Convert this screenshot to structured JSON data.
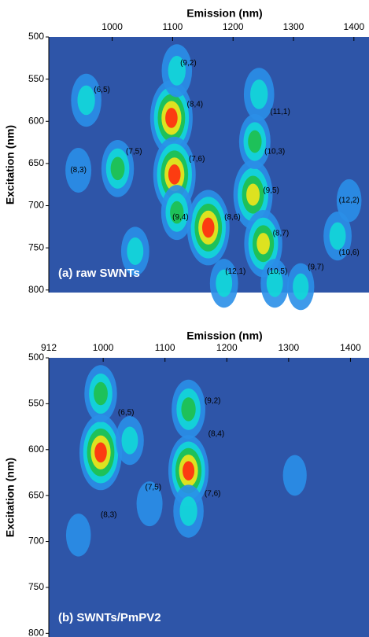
{
  "chart_data": [
    {
      "type": "heatmap",
      "xlabel": "Emission (nm)",
      "ylabel": "Excitation (nm)",
      "panel_label": "(a) raw SWNTs",
      "xlim": [
        895,
        1425
      ],
      "ylim": [
        500,
        803
      ],
      "xticks": [
        1000,
        1100,
        1200,
        1300,
        1400
      ],
      "yticks": [
        500,
        550,
        600,
        650,
        700,
        750,
        800
      ],
      "background": "#2e55a8",
      "colormap": [
        "#2e55a8",
        "#2a8fe8",
        "#12d8d8",
        "#1fbf4a",
        "#f2e51a",
        "#ff2a10"
      ],
      "peaks": {
        "x": [
          957,
          1009,
          944,
          1098,
          1103,
          1107,
          1159,
          1233,
          1250,
          1236,
          1243,
          1107,
          1185,
          1269,
          1312,
          1373,
          1038,
          1392
        ],
        "y": [
          575,
          656,
          658,
          596,
          663,
          540,
          726,
          687,
          745,
          624,
          568,
          708,
          792,
          792,
          796,
          736,
          754,
          694
        ],
        "intensity": [
          0.45,
          0.55,
          0.25,
          1.0,
          1.0,
          0.45,
          1.0,
          0.85,
          0.8,
          0.5,
          0.45,
          0.5,
          0.35,
          0.35,
          0.3,
          0.35,
          0.35,
          0.2
        ]
      },
      "annotations": [
        {
          "text": "(9,2)",
          "x": 1126,
          "y": 531
        },
        {
          "text": "(6,5)",
          "x": 983,
          "y": 563
        },
        {
          "text": "(8,4)",
          "x": 1137,
          "y": 580
        },
        {
          "text": "(11,1)",
          "x": 1278,
          "y": 589
        },
        {
          "text": "(7,5)",
          "x": 1036,
          "y": 636
        },
        {
          "text": "(10,3)",
          "x": 1269,
          "y": 636
        },
        {
          "text": "(8,3)",
          "x": 944,
          "y": 658
        },
        {
          "text": "(7,6)",
          "x": 1140,
          "y": 645
        },
        {
          "text": "(9,5)",
          "x": 1263,
          "y": 682
        },
        {
          "text": "(12,2)",
          "x": 1392,
          "y": 694
        },
        {
          "text": "(9,4)",
          "x": 1113,
          "y": 714
        },
        {
          "text": "(8,6)",
          "x": 1199,
          "y": 714
        },
        {
          "text": "(8,7)",
          "x": 1279,
          "y": 733
        },
        {
          "text": "(10,6)",
          "x": 1392,
          "y": 756
        },
        {
          "text": "(12,1)",
          "x": 1204,
          "y": 778
        },
        {
          "text": "(10,5)",
          "x": 1273,
          "y": 778
        },
        {
          "text": "(9,7)",
          "x": 1337,
          "y": 773
        }
      ]
    },
    {
      "type": "heatmap",
      "xlabel": "Emission (nm)",
      "ylabel": "Excitation (nm)",
      "panel_label": "(b) SWNTs/PmPV2",
      "xlim": [
        912,
        1430
      ],
      "ylim": [
        500,
        804
      ],
      "xticks": [
        912,
        1000,
        1100,
        1200,
        1300,
        1400
      ],
      "yticks": [
        500,
        550,
        600,
        650,
        700,
        750,
        800
      ],
      "background": "#2e55a8",
      "colormap": [
        "#2e55a8",
        "#2a8fe8",
        "#12d8d8",
        "#1fbf4a",
        "#f2e51a",
        "#ff2a10"
      ],
      "peaks": {
        "x": [
          996,
          996,
          1138,
          1138,
          1138,
          1043,
          1075,
          960,
          1310
        ],
        "y": [
          603,
          539,
          623,
          556,
          667,
          590,
          659,
          693,
          628
        ],
        "intensity": [
          1.0,
          0.55,
          0.9,
          0.6,
          0.45,
          0.35,
          0.25,
          0.2,
          0.15
        ]
      },
      "annotations": [
        {
          "text": "(6,5)",
          "x": 1037,
          "y": 560
        },
        {
          "text": "(9,2)",
          "x": 1177,
          "y": 547
        },
        {
          "text": "(8,4)",
          "x": 1183,
          "y": 583
        },
        {
          "text": "(7,5)",
          "x": 1081,
          "y": 641
        },
        {
          "text": "(7,6)",
          "x": 1177,
          "y": 648
        },
        {
          "text": "(8,3)",
          "x": 1009,
          "y": 671
        }
      ]
    }
  ]
}
